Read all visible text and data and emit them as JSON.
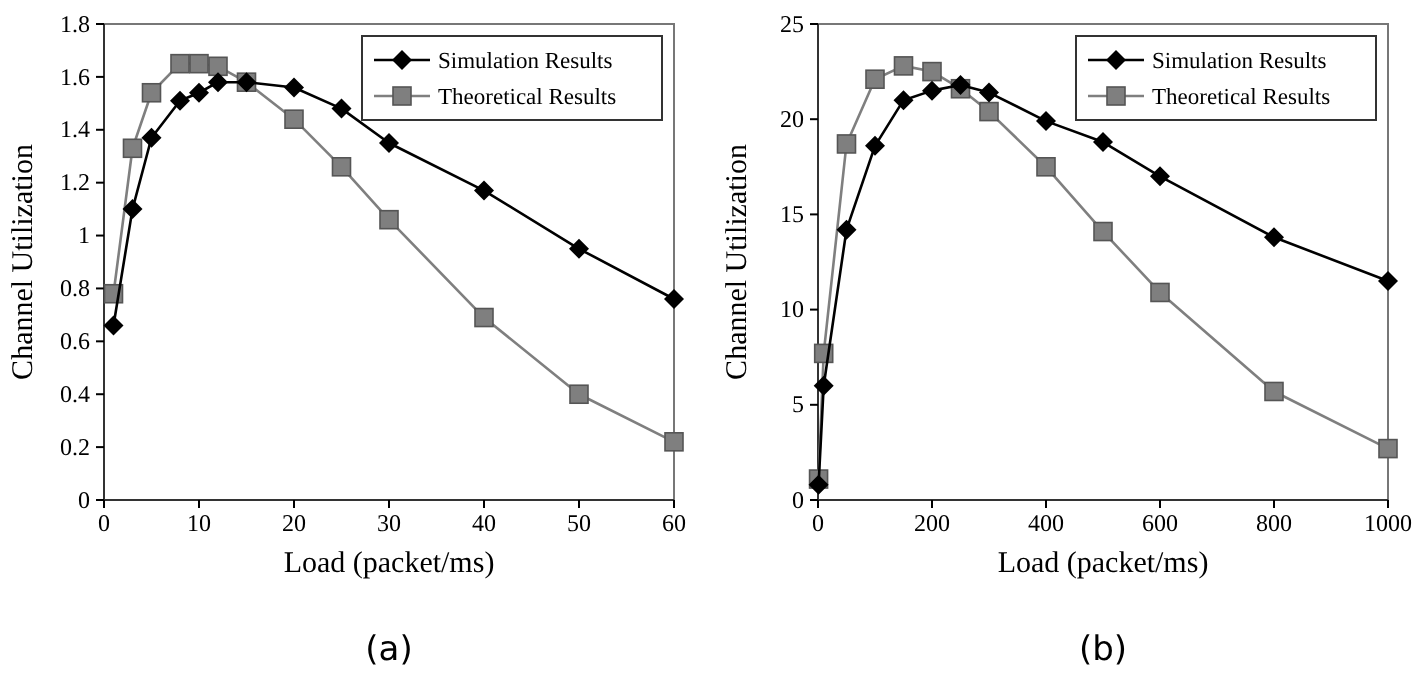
{
  "chart_data": [
    {
      "type": "line",
      "xlabel": "Load (packet/ms)",
      "ylabel": "Channel Utilization",
      "annotations": [
        "(a)"
      ],
      "x": [
        1,
        3,
        5,
        8,
        10,
        12,
        15,
        20,
        25,
        30,
        40,
        50,
        60
      ],
      "xlim": [
        0,
        60
      ],
      "xticks": [
        0,
        10,
        20,
        30,
        40,
        50,
        60
      ],
      "ylim": [
        0,
        1.8
      ],
      "yticks": [
        0,
        0.2,
        0.4,
        0.6,
        0.8,
        {
          "value": 1,
          "label": "1"
        },
        1.2,
        1.4,
        1.6,
        1.8
      ],
      "legend": "top right",
      "grid": false,
      "line_style": "solid",
      "series": [
        {
          "name": "Simulation Results",
          "color": "#000000",
          "marker": "diamond",
          "values": [
            0.66,
            1.1,
            1.37,
            1.51,
            1.54,
            1.58,
            1.58,
            1.56,
            1.48,
            1.35,
            1.17,
            0.95,
            0.76
          ]
        },
        {
          "name": "Theoretical Results",
          "color": "#7f7f7f",
          "marker": "square",
          "values": [
            0.78,
            1.33,
            1.54,
            1.65,
            1.65,
            1.64,
            1.58,
            1.44,
            1.26,
            1.06,
            0.69,
            0.4,
            0.22
          ]
        }
      ]
    },
    {
      "type": "line",
      "xlabel": "Load (packet/ms)",
      "ylabel": "Channel Utilization",
      "annotations": [
        "(b)"
      ],
      "x": [
        1,
        10,
        50,
        100,
        150,
        200,
        250,
        300,
        400,
        500,
        600,
        800,
        1000
      ],
      "xlim": [
        0,
        1000
      ],
      "xticks": [
        0,
        200,
        400,
        600,
        800,
        1000
      ],
      "ylim": [
        0,
        25
      ],
      "yticks": [
        0,
        5,
        10,
        15,
        20,
        25
      ],
      "legend": "top right",
      "grid": false,
      "line_style": "solid",
      "series": [
        {
          "name": "Simulation Results",
          "color": "#000000",
          "marker": "diamond",
          "values": [
            0.8,
            6,
            14.2,
            18.6,
            21,
            21.5,
            21.8,
            21.4,
            19.9,
            18.8,
            17,
            13.8,
            11.5
          ]
        },
        {
          "name": "Theoretical Results",
          "color": "#7f7f7f",
          "marker": "square",
          "values": [
            1.1,
            7.7,
            18.7,
            22.1,
            22.8,
            22.5,
            21.6,
            20.4,
            17.5,
            14.1,
            10.9,
            5.7,
            2.7
          ]
        }
      ]
    }
  ]
}
